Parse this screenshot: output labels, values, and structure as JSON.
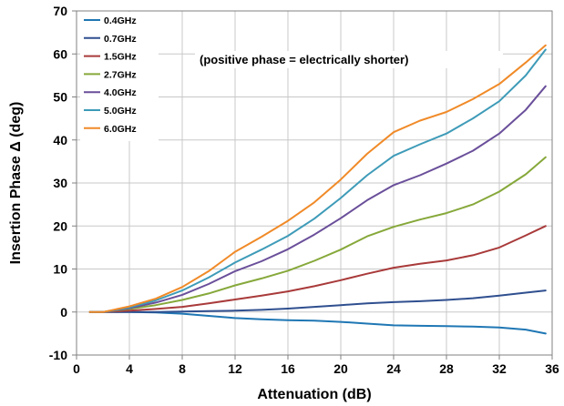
{
  "chart_data": {
    "type": "line",
    "title": "",
    "xlabel": "Attenuation  (dB)",
    "ylabel": "Insertion Phase Δ (deg)",
    "xlim": [
      0,
      36
    ],
    "ylim": [
      -10,
      70
    ],
    "x_ticks": [
      0,
      4,
      8,
      12,
      16,
      20,
      24,
      28,
      32,
      36
    ],
    "y_ticks": [
      -10,
      0,
      10,
      20,
      30,
      40,
      50,
      60,
      70
    ],
    "grid": true,
    "legend_position": "top-left",
    "annotation": "(positive phase = electrically shorter)",
    "x": [
      1,
      2,
      4,
      6,
      8,
      10,
      12,
      14,
      16,
      18,
      20,
      22,
      24,
      26,
      28,
      30,
      32,
      34,
      35.5
    ],
    "series": [
      {
        "name": "0.4GHz",
        "color": "#1f77b4",
        "values": [
          0,
          0,
          0,
          -0.1,
          -0.4,
          -0.9,
          -1.4,
          -1.7,
          -1.9,
          -2.0,
          -2.3,
          -2.7,
          -3.1,
          -3.2,
          -3.3,
          -3.4,
          -3.6,
          -4.1,
          -5.0
        ]
      },
      {
        "name": "0.7GHz",
        "color": "#2f4f8f",
        "values": [
          0,
          0,
          0,
          0,
          0.1,
          0.2,
          0.3,
          0.5,
          0.8,
          1.2,
          1.6,
          2.0,
          2.3,
          2.5,
          2.8,
          3.2,
          3.8,
          4.5,
          5.0
        ]
      },
      {
        "name": "1.5GHz",
        "color": "#a93a3a",
        "values": [
          0,
          0,
          0.3,
          0.7,
          1.2,
          2.0,
          2.9,
          3.8,
          4.8,
          6.0,
          7.4,
          8.9,
          10.3,
          11.2,
          12.0,
          13.2,
          15.0,
          17.8,
          20.0
        ]
      },
      {
        "name": "2.7GHz",
        "color": "#86a83a",
        "values": [
          0,
          0,
          0.7,
          1.6,
          2.8,
          4.3,
          6.2,
          7.8,
          9.6,
          11.9,
          14.5,
          17.6,
          19.8,
          21.5,
          23.0,
          25.0,
          28.0,
          32.0,
          36.0
        ]
      },
      {
        "name": "4.0GHz",
        "color": "#6a4f9a",
        "values": [
          0,
          0,
          0.9,
          2.2,
          4.0,
          6.5,
          9.5,
          11.8,
          14.6,
          18.0,
          21.8,
          26.0,
          29.5,
          31.8,
          34.5,
          37.5,
          41.5,
          47.0,
          52.5
        ]
      },
      {
        "name": "5.0GHz",
        "color": "#3e9bb8",
        "values": [
          0,
          0,
          1.1,
          2.7,
          5.0,
          8.0,
          11.5,
          14.5,
          17.7,
          21.7,
          26.5,
          31.8,
          36.3,
          39.0,
          41.5,
          45.0,
          49.0,
          55.0,
          61.0
        ]
      },
      {
        "name": "6.0GHz",
        "color": "#f08a28",
        "values": [
          0,
          0,
          1.3,
          3.1,
          5.8,
          9.5,
          14.0,
          17.5,
          21.2,
          25.5,
          30.8,
          36.8,
          41.8,
          44.5,
          46.5,
          49.5,
          53.0,
          58.0,
          62.0
        ]
      }
    ]
  }
}
